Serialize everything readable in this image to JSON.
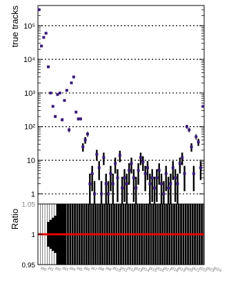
{
  "chart_data": [
    {
      "type": "scatter",
      "panel": "main",
      "title": "",
      "ylabel": "true tracks",
      "xlabel": "",
      "yscale": "log",
      "ylim": [
        0.5,
        400000
      ],
      "ytick_values": [
        1,
        10,
        100,
        1000,
        10000,
        100000
      ],
      "ytick_labels": [
        "1",
        "10",
        "10²",
        "10³",
        "10⁴",
        "10⁵"
      ],
      "grid": "horizontal-dotted",
      "n_bins": 72,
      "series": [
        {
          "name": "",
          "color": "#3a1a7a",
          "values": [
            300000,
            25000,
            45000,
            60000,
            6000,
            1000,
            400,
            200,
            900,
            1000,
            160,
            600,
            1200,
            80,
            2000,
            3000,
            270,
            170,
            170,
            25,
            40,
            60,
            2,
            4,
            1,
            15,
            6,
            1,
            12,
            2,
            1,
            4,
            2,
            8,
            3,
            14,
            1.5,
            3,
            2,
            5,
            8,
            3,
            1.5,
            5,
            12,
            9,
            4,
            6,
            2,
            3,
            1.5,
            3,
            5,
            2,
            1,
            4,
            1.5,
            2,
            6,
            3,
            2,
            8,
            12,
            4,
            100,
            80,
            25,
            4,
            50,
            35,
            6,
            400
          ]
        }
      ],
      "x_tick_labels": [
        "pt0",
        "pt1",
        "pt2",
        "pt3",
        "pt4",
        "pt5",
        "pt6",
        "pt7",
        "pt8",
        "pt9",
        "pt10",
        "pt11",
        "pt12",
        "pt13",
        "pt14",
        "pt15",
        "pt16",
        "pt17",
        "pt18",
        "pt19",
        "pt20",
        "pt21",
        "pt22",
        "pt23",
        "pt24"
      ]
    },
    {
      "type": "scatter",
      "panel": "ratio",
      "ylabel": "Ratio",
      "ylim": [
        0.95,
        1.05
      ],
      "ytick_values": [
        0.95,
        1,
        1.05
      ],
      "ytick_labels": [
        "0.95",
        "1",
        "1.05"
      ],
      "series": [
        {
          "name": "",
          "color": "#ff0000",
          "values": [
            1,
            1,
            1,
            1,
            1,
            1,
            1,
            1,
            1,
            1,
            1,
            1,
            1,
            1,
            1,
            1,
            1,
            1,
            1,
            1,
            1,
            1,
            1,
            1,
            1,
            1,
            1,
            1,
            1,
            1,
            1,
            1,
            1,
            1,
            1,
            1,
            1,
            1,
            1,
            1,
            1,
            1,
            1,
            1,
            1,
            1,
            1,
            1,
            1,
            1,
            1,
            1,
            1,
            1,
            1,
            1,
            1,
            1,
            1,
            1,
            1,
            1,
            1,
            1,
            1,
            1,
            1,
            1,
            1,
            1,
            1,
            1
          ]
        }
      ]
    }
  ]
}
